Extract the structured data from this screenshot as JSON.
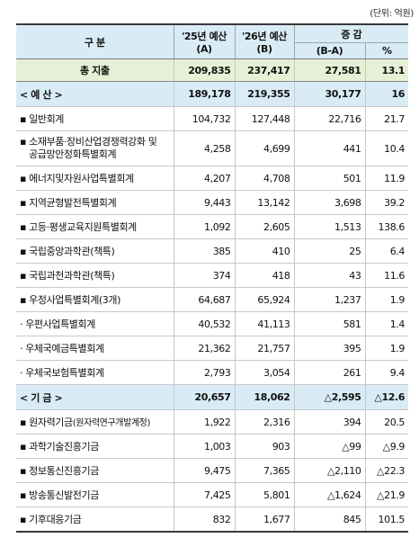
{
  "unit_note": "(단위: 억원)",
  "header": {
    "category": "구  분",
    "col_25": "'25년 예산",
    "col_25_sub": "(A)",
    "col_26": "'26년 예산",
    "col_26_sub": "(B)",
    "change": "증 감",
    "change_abs": "(B-A)",
    "change_pct": "%"
  },
  "total": {
    "label": "총 지출",
    "v25": "209,835",
    "v26": "237,417",
    "diff": "27,581",
    "pct": "13.1"
  },
  "budget_section": {
    "label": "< 예 산 >",
    "v25": "189,178",
    "v26": "219,355",
    "diff": "30,177",
    "pct": "16"
  },
  "budget_rows": [
    {
      "label": "▪ 일반회계",
      "v25": "104,732",
      "v26": "127,448",
      "diff": "22,716",
      "pct": "21.7"
    },
    {
      "label": "▪ 소재부품·장비산업경쟁력강화 및",
      "label2": "공급망안정화특별회계",
      "v25": "4,258",
      "v26": "4,699",
      "diff": "441",
      "pct": "10.4"
    },
    {
      "label": "▪ 에너지및자원사업특별회계",
      "v25": "4,207",
      "v26": "4,708",
      "diff": "501",
      "pct": "11.9"
    },
    {
      "label": "▪ 지역균형발전특별회계",
      "v25": "9,443",
      "v26": "13,142",
      "diff": "3,698",
      "pct": "39.2"
    },
    {
      "label": "▪ 고등·평생교육지원특별회계",
      "v25": "1,092",
      "v26": "2,605",
      "diff": "1,513",
      "pct": "138.6"
    },
    {
      "label": "▪ 국립중앙과학관(책특)",
      "v25": "385",
      "v26": "410",
      "diff": "25",
      "pct": "6.4"
    },
    {
      "label": "▪ 국립과천과학관(책특)",
      "v25": "374",
      "v26": "418",
      "diff": "43",
      "pct": "11.6"
    },
    {
      "label": "▪ 우정사업특별회계(3개)",
      "v25": "64,687",
      "v26": "65,924",
      "diff": "1,237",
      "pct": "1.9"
    },
    {
      "label": " · 우편사업특별회계",
      "v25": "40,532",
      "v26": "41,113",
      "diff": "581",
      "pct": "1.4"
    },
    {
      "label": " · 우체국예금특별회계",
      "v25": "21,362",
      "v26": "21,757",
      "diff": "395",
      "pct": "1.9"
    },
    {
      "label": " · 우체국보험특별회계",
      "v25": "2,793",
      "v26": "3,054",
      "diff": "261",
      "pct": "9.4"
    }
  ],
  "fund_section": {
    "label": "< 기 금 >",
    "v25": "20,657",
    "v26": "18,062",
    "diff": "△2,595",
    "pct": "△12.6"
  },
  "fund_rows": [
    {
      "label": "▪ 원자력기금",
      "label_small": "(원자력연구개발계정)",
      "v25": "1,922",
      "v26": "2,316",
      "diff": "394",
      "pct": "20.5"
    },
    {
      "label": "▪ 과학기술진흥기금",
      "v25": "1,003",
      "v26": "903",
      "diff": "△99",
      "pct": "△9.9"
    },
    {
      "label": "▪ 정보통신진흥기금",
      "v25": "9,475",
      "v26": "7,365",
      "diff": "△2,110",
      "pct": "△22.3"
    },
    {
      "label": "▪ 방송통신발전기금",
      "v25": "7,425",
      "v26": "5,801",
      "diff": "△1,624",
      "pct": "△21.9"
    },
    {
      "label": "▪ 기후대응기금",
      "v25": "832",
      "v26": "1,677",
      "diff": "845",
      "pct": "101.5"
    }
  ]
}
